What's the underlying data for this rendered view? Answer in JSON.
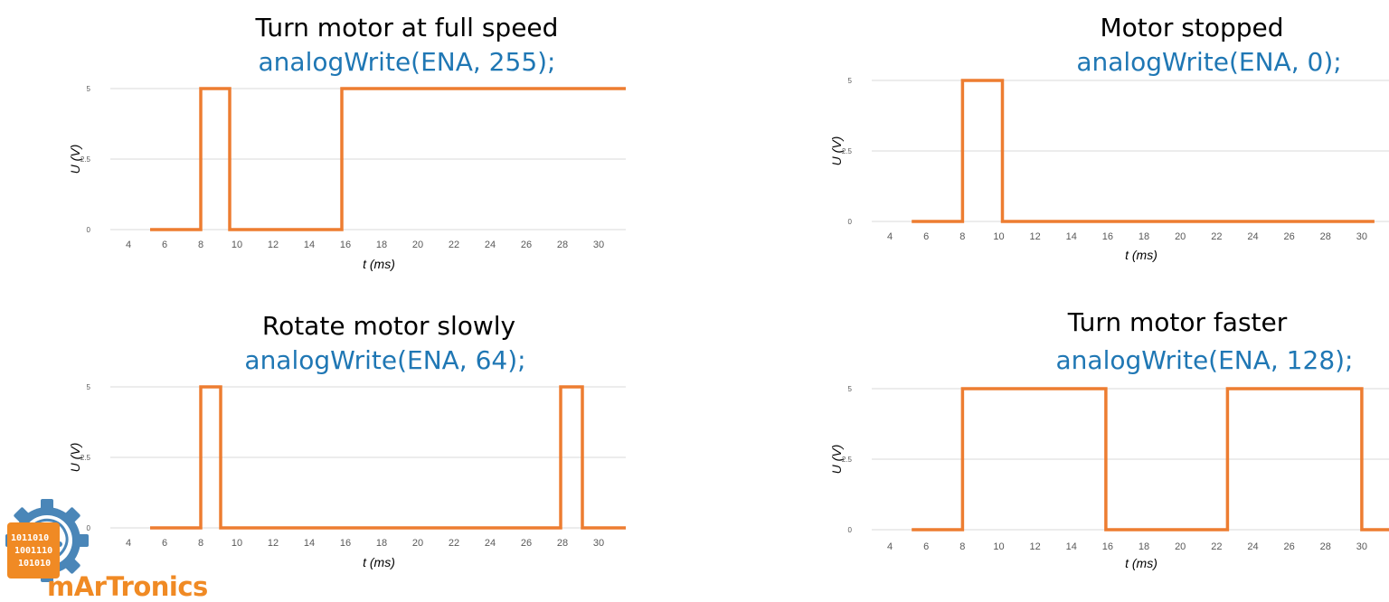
{
  "colors": {
    "line": "#ed7d31",
    "code": "#1f77b4",
    "grid": "#d9d9d9",
    "tick": "#595959",
    "logo_orange": "#f08a24",
    "logo_blue": "#4a86b8"
  },
  "logo": {
    "text": "mArTronics",
    "binary": [
      "1011010",
      "1001110",
      "101010"
    ]
  },
  "chart_data": [
    {
      "type": "line",
      "title": "Turn motor at full speed",
      "code": "analogWrite(ENA, 255);",
      "xlabel": "t (ms)",
      "ylabel": "U (V)",
      "x_ticks": [
        "4",
        "6",
        "8",
        "10",
        "12",
        "14",
        "16",
        "18",
        "20",
        "22",
        "24",
        "26",
        "28",
        "30"
      ],
      "y_ticks": [
        "0",
        "2.5",
        "5"
      ],
      "xlim": [
        3,
        31.5
      ],
      "ylim": [
        0,
        5
      ],
      "grid": true,
      "x": [
        5.2,
        8,
        8,
        9.6,
        9.6,
        15.8,
        15.8,
        31.5
      ],
      "y": [
        0,
        0,
        5,
        5,
        0,
        0,
        5,
        5
      ]
    },
    {
      "type": "line",
      "title": "Motor stopped",
      "code": "analogWrite(ENA, 0);",
      "xlabel": "t (ms)",
      "ylabel": "U (V)",
      "x_ticks": [
        "4",
        "6",
        "8",
        "10",
        "12",
        "14",
        "16",
        "18",
        "20",
        "22",
        "24",
        "26",
        "28",
        "30"
      ],
      "y_ticks": [
        "0",
        "2.5",
        "5"
      ],
      "xlim": [
        3,
        31.5
      ],
      "ylim": [
        0,
        5
      ],
      "grid": true,
      "x": [
        5.2,
        8,
        8,
        10.2,
        10.2,
        30.7
      ],
      "y": [
        0,
        0,
        5,
        5,
        0,
        0
      ]
    },
    {
      "type": "line",
      "title": "Rotate motor slowly",
      "code": "analogWrite(ENA, 64);",
      "xlabel": "t (ms)",
      "ylabel": "U (V)",
      "x_ticks": [
        "4",
        "6",
        "8",
        "10",
        "12",
        "14",
        "16",
        "18",
        "20",
        "22",
        "24",
        "26",
        "28",
        "30"
      ],
      "y_ticks": [
        "0",
        "2.5",
        "5"
      ],
      "xlim": [
        3,
        31.5
      ],
      "ylim": [
        0,
        5
      ],
      "grid": true,
      "x": [
        5.2,
        8,
        8,
        9.1,
        9.1,
        27.9,
        27.9,
        29.1,
        29.1,
        31.5
      ],
      "y": [
        0,
        0,
        5,
        5,
        0,
        0,
        5,
        5,
        0,
        0
      ]
    },
    {
      "type": "line",
      "title": "Turn motor faster",
      "code": "analogWrite(ENA, 128);",
      "xlabel": "t (ms)",
      "ylabel": "U (V)",
      "x_ticks": [
        "4",
        "6",
        "8",
        "10",
        "12",
        "14",
        "16",
        "18",
        "20",
        "22",
        "24",
        "26",
        "28",
        "30"
      ],
      "y_ticks": [
        "0",
        "2.5",
        "5"
      ],
      "xlim": [
        3,
        31.5
      ],
      "ylim": [
        0,
        5
      ],
      "grid": true,
      "x": [
        5.2,
        8,
        8,
        15.9,
        15.9,
        22.6,
        22.6,
        30,
        30,
        31.5
      ],
      "y": [
        0,
        0,
        5,
        5,
        0,
        0,
        5,
        5,
        0,
        0
      ]
    }
  ]
}
